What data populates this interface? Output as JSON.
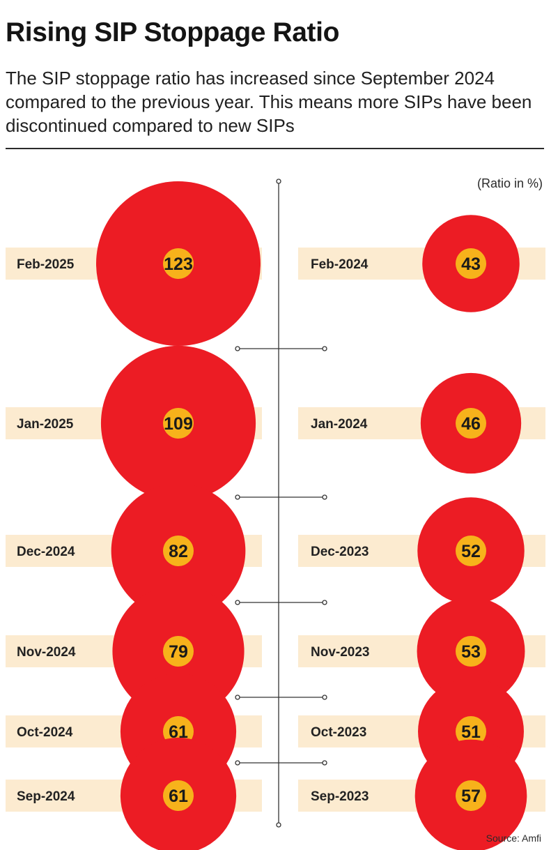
{
  "title": "Rising SIP Stoppage Ratio",
  "subtitle": "The SIP stoppage ratio has increased since September 2024 compared to the previous year. This means more SIPs have been discontinued compared to new SIPs",
  "unit_note": "(Ratio in %)",
  "source": "Source: Amfi",
  "colors": {
    "circle": "#ec1c24",
    "value_disc": "#f7b21b",
    "band": "#fcebd0"
  },
  "chart_data": {
    "type": "bubble",
    "unit": "Ratio in %",
    "layout_note": "mirrored comparison",
    "current_year": {
      "labels": [
        "Feb-2025",
        "Jan-2025",
        "Dec-2024",
        "Nov-2024",
        "Oct-2024",
        "Sep-2024"
      ],
      "values": [
        123,
        109,
        82,
        79,
        61,
        61
      ]
    },
    "previous_year": {
      "labels": [
        "Feb-2024",
        "Jan-2024",
        "Dec-2023",
        "Nov-2023",
        "Oct-2023",
        "Sep-2023"
      ],
      "values": [
        43,
        46,
        52,
        53,
        51,
        57
      ]
    }
  }
}
